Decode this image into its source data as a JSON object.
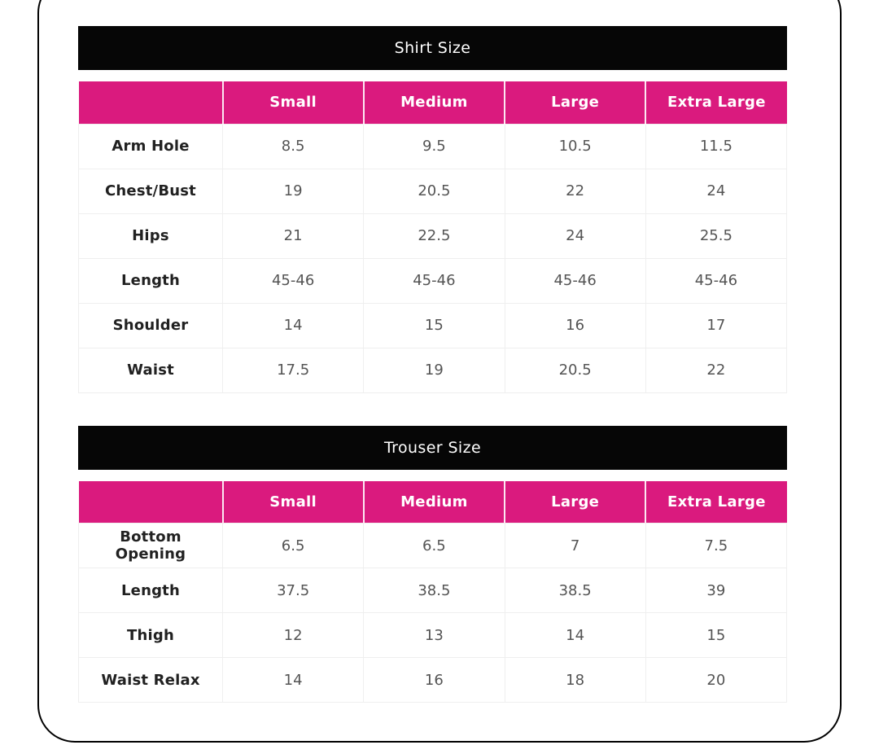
{
  "colors": {
    "accent_pink": "#da1a7e",
    "title_bar_black": "#060606",
    "card_border": "#000000",
    "body_border": "#efefef",
    "label_text": "#212121",
    "value_text": "#545454",
    "header_text": "#ffffff",
    "title_text": "#ffffff"
  },
  "tables": [
    {
      "title": "Shirt Size",
      "columns": [
        "",
        "Small",
        "Medium",
        "Large",
        "Extra Large"
      ],
      "rows": [
        {
          "label": "Arm Hole",
          "values": [
            "8.5",
            "9.5",
            "10.5",
            "11.5"
          ]
        },
        {
          "label": "Chest/Bust",
          "values": [
            "19",
            "20.5",
            "22",
            "24"
          ]
        },
        {
          "label": "Hips",
          "values": [
            "21",
            "22.5",
            "24",
            "25.5"
          ]
        },
        {
          "label": "Length",
          "values": [
            "45-46",
            "45-46",
            "45-46",
            "45-46"
          ]
        },
        {
          "label": "Shoulder",
          "values": [
            "14",
            "15",
            "16",
            "17"
          ]
        },
        {
          "label": "Waist",
          "values": [
            "17.5",
            "19",
            "20.5",
            "22"
          ]
        }
      ]
    },
    {
      "title": "Trouser Size",
      "columns": [
        "",
        "Small",
        "Medium",
        "Large",
        "Extra Large"
      ],
      "rows": [
        {
          "label": "Bottom Opening",
          "values": [
            "6.5",
            "6.5",
            "7",
            "7.5"
          ]
        },
        {
          "label": "Length",
          "values": [
            "37.5",
            "38.5",
            "38.5",
            "39"
          ]
        },
        {
          "label": "Thigh",
          "values": [
            "12",
            "13",
            "14",
            "15"
          ]
        },
        {
          "label": "Waist Relax",
          "values": [
            "14",
            "16",
            "18",
            "20"
          ]
        }
      ]
    }
  ]
}
